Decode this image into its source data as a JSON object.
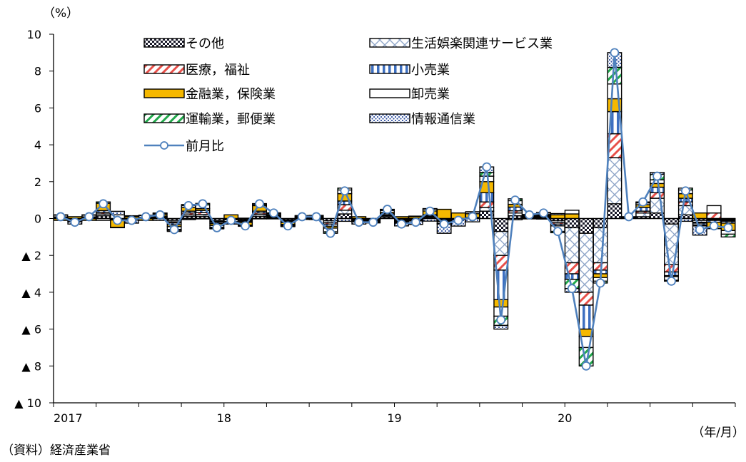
{
  "chart_data": {
    "type": "bar",
    "title": "",
    "ylabel": "（%）",
    "xlabel": "（年/月）",
    "source": "（資料）経済産業省",
    "ylim": [
      -10,
      10
    ],
    "y_ticks": [
      10,
      8,
      6,
      4,
      2,
      0,
      -2,
      -4,
      -6,
      -8,
      -10
    ],
    "y_tick_labels": [
      "10",
      "8",
      "6",
      "4",
      "2",
      "0",
      "▲ 2",
      "▲ 4",
      "▲ 6",
      "▲ 8",
      "▲ 10"
    ],
    "x_tick_labels": [
      "2017",
      "18",
      "19",
      "20"
    ],
    "x_tick_index": [
      0,
      12,
      24,
      36
    ],
    "months": 48,
    "legend": [
      {
        "name": "その他",
        "key": "other",
        "pattern": "checker",
        "color": "#1a1a2a"
      },
      {
        "name": "生活娯楽関連サービス業",
        "key": "leisure",
        "pattern": "crosshatch",
        "color": "#8fa6c8"
      },
      {
        "name": "医療，福祉",
        "key": "medical",
        "pattern": "diag",
        "color": "#e8504a"
      },
      {
        "name": "小売業",
        "key": "retail",
        "pattern": "vstripe",
        "color": "#3d6fc0"
      },
      {
        "name": "金融業，保険業",
        "key": "finance",
        "pattern": "solid",
        "color": "#f5b800"
      },
      {
        "name": "卸売業",
        "key": "wholesale",
        "pattern": "blank",
        "color": "#ffffff"
      },
      {
        "name": "運輸業，郵便業",
        "key": "transport",
        "pattern": "diaggreen",
        "color": "#21a84b"
      },
      {
        "name": "情報通信業",
        "key": "info",
        "pattern": "dots",
        "color": "#2f4fa0"
      },
      {
        "name": "前月比",
        "key": "mom",
        "pattern": "line",
        "color": "#4f81bd"
      }
    ],
    "mom": [
      0.1,
      -0.2,
      0.1,
      0.8,
      -0.1,
      -0.1,
      0.1,
      0.2,
      -0.6,
      0.7,
      0.8,
      -0.5,
      -0.1,
      -0.4,
      0.8,
      0.3,
      -0.4,
      0.1,
      0.1,
      -0.8,
      1.5,
      -0.2,
      -0.2,
      0.5,
      -0.3,
      -0.2,
      0.4,
      -0.3,
      -0.1,
      0.1,
      2.8,
      -5.5,
      1.0,
      0.2,
      0.3,
      -0.7,
      -3.8,
      -8.0,
      -3.5,
      9.0,
      0.1,
      0.9,
      2.3,
      -3.4,
      1.5,
      -0.6,
      -0.4,
      -0.5
    ],
    "series": [
      {
        "key": "other",
        "values": [
          0.05,
          -0.03,
          0.05,
          0.15,
          -0.03,
          -0.03,
          0.03,
          0.05,
          -0.1,
          0.12,
          0.12,
          -0.1,
          -0.03,
          -0.06,
          0.12,
          0.05,
          -0.07,
          0.02,
          0.02,
          -0.12,
          0.25,
          -0.03,
          -0.03,
          0.08,
          -0.05,
          -0.03,
          0.06,
          -0.05,
          -0.02,
          0.02,
          0.4,
          -0.7,
          0.15,
          0.04,
          0.05,
          -0.12,
          -0.5,
          -0.8,
          -0.5,
          0.8,
          0.02,
          0.1,
          0.3,
          -0.3,
          0.2,
          -0.1,
          -0.05,
          -0.05
        ]
      },
      {
        "key": "leisure",
        "values": [
          0.02,
          -0.02,
          0.02,
          0.1,
          -0.02,
          -0.02,
          0.02,
          0.03,
          -0.08,
          0.08,
          0.1,
          -0.06,
          -0.02,
          -0.05,
          0.1,
          0.04,
          -0.05,
          0.02,
          0.02,
          -0.1,
          0.2,
          -0.03,
          -0.03,
          0.06,
          -0.04,
          -0.03,
          0.05,
          -0.04,
          -0.01,
          0.02,
          0.2,
          -1.3,
          0.15,
          0.03,
          0.04,
          -0.1,
          -1.9,
          -3.2,
          -1.9,
          2.5,
          0.02,
          0.2,
          0.8,
          -2.2,
          0.5,
          -0.1,
          -0.05,
          -0.05
        ]
      },
      {
        "key": "medical",
        "values": [
          0.01,
          -0.02,
          0.01,
          0.08,
          -0.01,
          -0.01,
          0.01,
          0.02,
          -0.06,
          0.1,
          0.1,
          -0.05,
          -0.01,
          -0.04,
          0.08,
          0.03,
          -0.04,
          0.01,
          0.01,
          -0.08,
          0.3,
          -0.02,
          -0.02,
          0.05,
          -0.03,
          -0.02,
          0.04,
          -0.03,
          -0.01,
          0.01,
          0.3,
          -0.8,
          0.12,
          0.02,
          0.03,
          -0.08,
          -0.6,
          -0.7,
          -0.4,
          1.3,
          0.01,
          0.1,
          0.3,
          -0.4,
          0.2,
          -0.05,
          0.3,
          -0.05
        ]
      },
      {
        "key": "retail",
        "values": [
          0.01,
          -0.03,
          0.01,
          0.1,
          -0.02,
          -0.02,
          0.01,
          0.03,
          -0.1,
          0.1,
          0.12,
          -0.07,
          -0.01,
          -0.06,
          0.1,
          0.05,
          -0.06,
          0.01,
          0.01,
          -0.12,
          0.2,
          -0.03,
          -0.03,
          0.07,
          -0.05,
          -0.03,
          0.06,
          -0.05,
          -0.02,
          0.01,
          0.5,
          -1.6,
          0.2,
          0.03,
          0.05,
          -0.1,
          -0.3,
          -1.3,
          -0.2,
          1.2,
          0.01,
          0.2,
          0.3,
          -0.2,
          0.2,
          -0.1,
          -0.1,
          -0.1
        ]
      },
      {
        "key": "finance",
        "values": [
          -0.1,
          0.1,
          -0.1,
          0.4,
          -0.4,
          0.1,
          -0.1,
          0.1,
          -0.1,
          0.2,
          0.1,
          -0.1,
          0.2,
          -0.15,
          0.3,
          0.05,
          -0.1,
          0.05,
          0.05,
          -0.1,
          0.4,
          0.1,
          -0.05,
          0.08,
          0.1,
          0.1,
          0.2,
          0.5,
          0.3,
          0.2,
          0.6,
          -0.4,
          0.15,
          0.03,
          0.05,
          0.2,
          0.25,
          -0.4,
          -0.2,
          0.7,
          0.01,
          0.15,
          0.2,
          -0.05,
          0.25,
          0.3,
          -0.35,
          -0.4
        ]
      },
      {
        "key": "wholesale",
        "values": [
          0.1,
          -0.05,
          0.1,
          -0.1,
          0.2,
          0.05,
          0.1,
          0.05,
          -0.15,
          0.1,
          0.2,
          -0.1,
          -0.1,
          0.02,
          0.05,
          0.06,
          -0.05,
          0.04,
          0.05,
          -0.2,
          0.2,
          -0.05,
          -0.04,
          0.1,
          -0.05,
          0.03,
          0.1,
          -0.1,
          0.0,
          0.1,
          0.3,
          -0.5,
          0.2,
          0.05,
          0.08,
          -0.3,
          0.2,
          -0.6,
          -0.2,
          0.8,
          0.01,
          0.1,
          0.2,
          -0.2,
          0.2,
          0.0,
          0.4,
          -0.2
        ]
      },
      {
        "key": "transport",
        "values": [
          0.01,
          -0.02,
          0.01,
          0.07,
          -0.01,
          -0.01,
          0.01,
          0.02,
          -0.05,
          0.06,
          0.08,
          -0.05,
          -0.01,
          -0.04,
          0.06,
          0.03,
          -0.04,
          0.01,
          0.01,
          -0.08,
          0.1,
          -0.02,
          -0.02,
          0.04,
          -0.03,
          -0.02,
          0.03,
          -0.03,
          -0.01,
          0.01,
          0.2,
          -0.5,
          0.1,
          0.02,
          0.03,
          -0.07,
          -0.5,
          -1.0,
          -0.1,
          0.9,
          0.01,
          0.05,
          0.3,
          -0.05,
          0.1,
          -0.05,
          0.0,
          -0.15
        ]
      },
      {
        "key": "info",
        "values": [
          0.0,
          -0.13,
          0.0,
          0.0,
          0.19,
          -0.16,
          0.0,
          -0.1,
          -0.06,
          -0.06,
          -0.02,
          -0.03,
          -0.12,
          -0.02,
          -0.01,
          -0.01,
          -0.03,
          -0.05,
          -0.06,
          0.0,
          -0.15,
          -0.12,
          -0.01,
          0.02,
          -0.15,
          -0.19,
          -0.14,
          -0.5,
          -0.34,
          -0.18,
          0.3,
          -0.2,
          -0.07,
          -0.02,
          -0.03,
          0.07,
          -0.2,
          0.0,
          -0.0,
          0.8,
          0.01,
          -0.0,
          0.1,
          0.0,
          -0.15,
          -0.5,
          0.0,
          0.0
        ]
      }
    ]
  }
}
